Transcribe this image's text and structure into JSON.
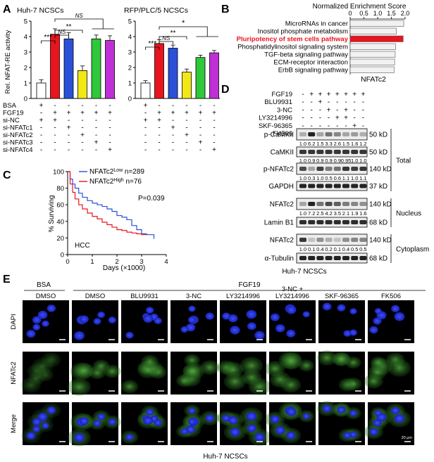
{
  "panel_letters": [
    "A",
    "B",
    "C",
    "D",
    "E"
  ],
  "A": {
    "ylabel": "Rel. NFAT-RE activity",
    "colors": [
      "#ffffff",
      "#e8141e",
      "#2a50d8",
      "#f2e816",
      "#2ec83a",
      "#c02fd6"
    ],
    "row_labels": [
      "BSA",
      "FGF19",
      "si-NC",
      "si-NFATc1",
      "si-NFATc2",
      "si-NFATc3",
      "si-NFATc4"
    ],
    "left": {
      "title": "Huh-7 NCSCs",
      "signs": [
        [
          "+",
          "-",
          "-",
          "-",
          "-",
          "-"
        ],
        [
          "-",
          "+",
          "+",
          "+",
          "+",
          "+"
        ],
        [
          "+",
          "+",
          "-",
          "-",
          "-",
          "-"
        ],
        [
          "-",
          "-",
          "+",
          "-",
          "-",
          "-"
        ],
        [
          "-",
          "-",
          "-",
          "+",
          "-",
          "-"
        ],
        [
          "-",
          "-",
          "-",
          "-",
          "+",
          "-"
        ],
        [
          "-",
          "-",
          "-",
          "-",
          "-",
          "+"
        ]
      ],
      "sig": [
        {
          "label": "***"
        },
        {
          "label": "NS"
        },
        {
          "label": "**"
        },
        {
          "label": "NS"
        }
      ]
    },
    "right": {
      "title": "RFP/PLC/5 NCSCs",
      "signs": [
        [
          "+",
          "-",
          "-",
          "-",
          "-",
          "-"
        ],
        [
          "-",
          "+",
          "+",
          "+",
          "+",
          "+"
        ],
        [
          "+",
          "+",
          "-",
          "-",
          "-",
          "-"
        ],
        [
          "-",
          "-",
          "+",
          "-",
          "-",
          "-"
        ],
        [
          "-",
          "-",
          "-",
          "+",
          "-",
          "-"
        ],
        [
          "-",
          "-",
          "-",
          "-",
          "+",
          "-"
        ],
        [
          "-",
          "-",
          "-",
          "-",
          "-",
          "+"
        ]
      ],
      "sig": [
        {
          "label": "***"
        },
        {
          "label": "NS"
        },
        {
          "label": "**"
        },
        {
          "label": "*"
        }
      ]
    }
  },
  "B": {
    "axis_title": "Normalized Enrichment Score",
    "highlight_color": "#e8141e",
    "footer": "NFATc2"
  },
  "C": {
    "ylabel": "% Surviving",
    "xlabel": "Days (×1000)",
    "legend": [
      {
        "prefix": "NFATc2",
        "sup": "Low",
        "suffix": " n=289",
        "color": "#2a50d8"
      },
      {
        "prefix": "NFATc2",
        "sup": "High",
        "suffix": " n=76",
        "color": "#e8141e"
      }
    ],
    "pvalue": "P=0.039",
    "tag": "HCC"
  },
  "D": {
    "treatments": [
      {
        "name": "FGF19",
        "signs": [
          "-",
          "+",
          "+",
          "+",
          "+",
          "+",
          "+",
          "+"
        ]
      },
      {
        "name": "BLU9931",
        "signs": [
          "-",
          "-",
          "+",
          "-",
          "-",
          "-",
          "-",
          "-"
        ]
      },
      {
        "name": "3-NC",
        "signs": [
          "-",
          "-",
          "-",
          "+",
          "-",
          "+",
          "-",
          "-"
        ]
      },
      {
        "name": "LY3214996",
        "signs": [
          "-",
          "-",
          "-",
          "-",
          "+",
          "+",
          "-",
          "-"
        ]
      },
      {
        "name": "SKF-96365",
        "signs": [
          "-",
          "-",
          "-",
          "-",
          "-",
          "-",
          "+",
          "-"
        ]
      },
      {
        "name": "FK506",
        "signs": [
          "-",
          "-",
          "-",
          "-",
          "-",
          "-",
          "-",
          "+"
        ]
      }
    ],
    "blots": [
      {
        "label": "p-CaMKII",
        "kd": "50 kD",
        "quant": [
          "1.0",
          "6.2",
          "1.5",
          "3.3",
          "2.6",
          "1.5",
          "1.6",
          "1.2"
        ]
      },
      {
        "label": "CaMKII",
        "kd": "50 kD",
        "quant": [
          "1.0",
          "0.9",
          "0.9",
          "0.9",
          "0.9",
          "0.95",
          "1.0",
          "1.0"
        ]
      },
      {
        "label": "p-NFATc2",
        "kd": "140 kD",
        "quant": [
          "1.0",
          "0.3",
          "1.0",
          "0.5",
          "0.6",
          "1.1",
          "1.0",
          "1.1"
        ]
      },
      {
        "label": "GAPDH",
        "kd": "37 kD",
        "quant": null
      },
      {
        "label": "NFATc2",
        "kd": "140 kD",
        "quant": [
          "1.0",
          "7.2",
          "2.5",
          "4.2",
          "3.5",
          "2.1",
          "1.9",
          "1.6"
        ]
      },
      {
        "label": "Lamin B1",
        "kd": "68 kD",
        "quant": null
      },
      {
        "label": "NFATc2",
        "kd": "140 kD",
        "quant": [
          "1.0",
          "0.1",
          "0.4",
          "0.2",
          "0.1",
          "0.4",
          "0.5",
          "0.5"
        ]
      },
      {
        "label": "α-Tubulin",
        "kd": "68 kD",
        "quant": null
      }
    ],
    "groups": [
      "Total",
      "Nucleus",
      "Cytoplasm"
    ],
    "footer": "Huh-7 NCSCs"
  },
  "E": {
    "group_bsa": "BSA",
    "group_fgf": "FGF19",
    "columns": [
      "DMSO",
      "DMSO",
      "BLU9931",
      "3-NC",
      "LY3214996",
      "3-NC +\nLY3214996",
      "SKF-96365",
      "FK506"
    ],
    "rows": [
      "DAPI",
      "NFATc2",
      "Merge"
    ],
    "scale_text": "20 μm",
    "footer": "Huh-7 NCSCs"
  },
  "chart_data": [
    {
      "type": "bar",
      "title": "Huh-7 NCSCs",
      "ylabel": "Rel. NFAT-RE activity",
      "ylim": [
        0,
        5
      ],
      "yticks": [
        "0",
        "1",
        "2",
        "3",
        "4",
        "5"
      ],
      "categories": [
        "1",
        "2",
        "3",
        "4",
        "5",
        "6"
      ],
      "values": [
        1.0,
        4.15,
        3.85,
        1.8,
        3.85,
        3.75
      ],
      "errors": [
        0.2,
        0.35,
        0.4,
        0.3,
        0.25,
        0.3
      ]
    },
    {
      "type": "bar",
      "title": "RFP/PLC/5 NCSCs",
      "ylim": [
        0,
        5
      ],
      "yticks": [
        "0",
        "1",
        "2",
        "3",
        "4",
        "5"
      ],
      "categories": [
        "1",
        "2",
        "3",
        "4",
        "5",
        "6"
      ],
      "values": [
        1.0,
        3.55,
        3.25,
        1.7,
        2.65,
        2.95
      ],
      "errors": [
        0.15,
        0.25,
        0.2,
        0.2,
        0.15,
        0.15
      ]
    },
    {
      "type": "bar",
      "title": "Normalized Enrichment Score",
      "orientation": "horizontal",
      "xlim": [
        0,
        2.0
      ],
      "xticks": [
        "0",
        "0.5",
        "1.0",
        "1.5",
        "2.0"
      ],
      "categories": [
        "MicroRNAs in cancer",
        "Inositol phosphate metabolism",
        "Pluripotency of stem cells pathway",
        "Phosphatidylinositol signaling system",
        "TGF-beta signaling pathway",
        "ECM-receptor interaction",
        "ErbB signaling pathway"
      ],
      "values": [
        1.95,
        1.68,
        1.93,
        1.66,
        1.64,
        1.62,
        1.6
      ],
      "highlight_index": 2
    },
    {
      "type": "line",
      "ylabel": "% Surviving",
      "xlabel": "Days (×1000)",
      "xlim": [
        0,
        4
      ],
      "ylim": [
        0,
        100
      ],
      "xticks": [
        "0",
        "1",
        "2",
        "3",
        "4"
      ],
      "yticks": [
        "0",
        "20",
        "40",
        "60",
        "80",
        "100"
      ],
      "series": [
        {
          "name": "NFATc2Low n=289",
          "color": "#2a50d8",
          "x": [
            0,
            0.1,
            0.2,
            0.3,
            0.45,
            0.6,
            0.8,
            1.0,
            1.2,
            1.4,
            1.6,
            1.8,
            2.0,
            2.2,
            2.4,
            2.6,
            2.8,
            3.0,
            3.2,
            3.5
          ],
          "y": [
            100,
            91,
            85,
            80,
            74,
            69,
            65,
            62,
            60,
            58,
            55,
            52,
            47,
            45,
            42,
            35,
            30,
            25,
            24,
            19
          ]
        },
        {
          "name": "NFATc2High n=76",
          "color": "#e8141e",
          "x": [
            0,
            0.1,
            0.2,
            0.3,
            0.45,
            0.6,
            0.8,
            1.0,
            1.2,
            1.4,
            1.6,
            1.8,
            2.0,
            2.2,
            2.4,
            2.6,
            2.8,
            3.0,
            3.2
          ],
          "y": [
            100,
            85,
            75,
            67,
            60,
            55,
            50,
            46,
            43,
            39,
            36,
            33,
            30,
            29,
            27,
            26,
            25,
            24,
            24
          ]
        }
      ]
    }
  ]
}
